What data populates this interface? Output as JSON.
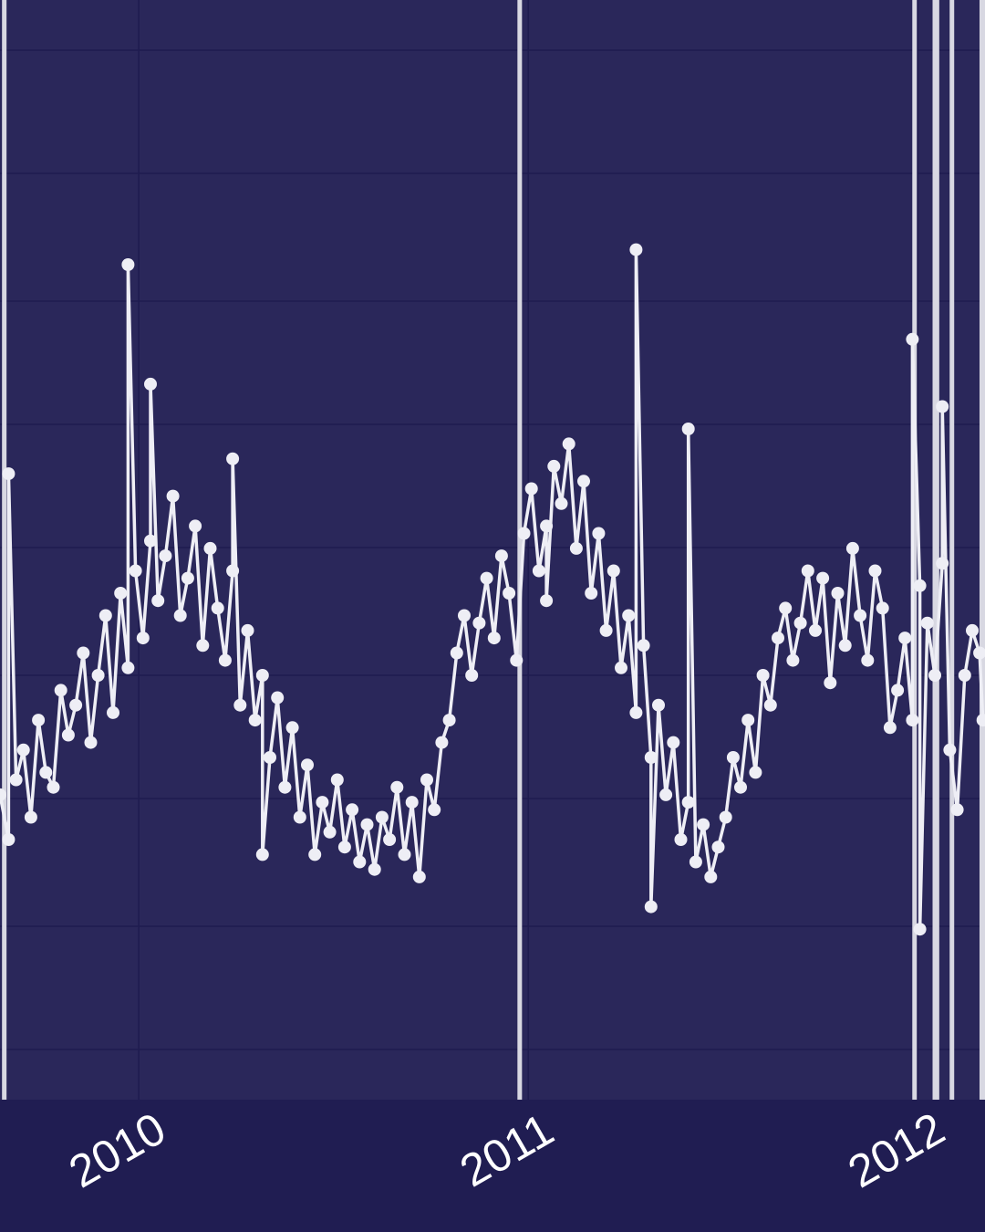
{
  "chart_data": {
    "type": "line",
    "title": "",
    "xlabel": "",
    "ylabel": "",
    "x_tick_labels": [
      "2010",
      "2011",
      "2012"
    ],
    "x_range": [
      "2009-08-24",
      "2012-03-04"
    ],
    "grid": true,
    "legend": "none",
    "markers": true,
    "colors": {
      "background": "#201d52",
      "plot_area": "#2a275a",
      "grid": "#1e1b4f",
      "series": "#eeeef5",
      "reference_lines": "#d8d8e2"
    },
    "reference_lines_x": [
      "2009-08-28",
      "2010-12-24",
      "2011-12-29",
      "2012-01-17",
      "2012-01-19",
      "2012-02-02",
      "2012-03-01",
      "2012-03-03"
    ],
    "series": [
      {
        "x": [
          "2009-08-24",
          "2009-09-01",
          "2009-09-08",
          "2009-09-15",
          "2009-09-22",
          "2009-09-29",
          "2009-10-06",
          "2009-10-13",
          "2009-10-20",
          "2009-10-27",
          "2009-11-03",
          "2009-11-10",
          "2009-11-17",
          "2009-11-24",
          "2009-12-01",
          "2009-12-08",
          "2009-12-15",
          "2009-12-22",
          "2009-12-29",
          "2010-01-05",
          "2010-01-12",
          "2010-01-19",
          "2010-01-26",
          "2010-02-02",
          "2010-02-09",
          "2010-02-16",
          "2010-02-23",
          "2010-03-02",
          "2010-03-09",
          "2010-03-16",
          "2010-03-23",
          "2010-03-30",
          "2010-04-06",
          "2010-04-13",
          "2010-04-20",
          "2010-04-27",
          "2010-05-04",
          "2010-05-11",
          "2010-05-18",
          "2010-05-25",
          "2010-06-01",
          "2010-06-08",
          "2010-06-15",
          "2010-06-22",
          "2010-06-29",
          "2010-07-06",
          "2010-07-13",
          "2010-07-20",
          "2010-07-27",
          "2010-08-03",
          "2010-08-10",
          "2010-08-17",
          "2010-08-24",
          "2010-08-31",
          "2010-09-07",
          "2010-09-14",
          "2010-09-21",
          "2010-09-28",
          "2010-10-05",
          "2010-10-12",
          "2010-10-19",
          "2010-10-26",
          "2010-11-02",
          "2010-11-09",
          "2010-11-16",
          "2010-11-23",
          "2010-11-30",
          "2010-12-07",
          "2010-12-14",
          "2010-12-21",
          "2010-12-28",
          "2011-01-04",
          "2011-01-11",
          "2011-01-18",
          "2011-01-25",
          "2011-02-01",
          "2011-02-08",
          "2011-02-15",
          "2011-02-22",
          "2011-03-01",
          "2011-03-08",
          "2011-03-15",
          "2011-03-22",
          "2011-03-29",
          "2011-04-05",
          "2011-04-12",
          "2011-04-19",
          "2011-04-26",
          "2011-05-03",
          "2011-05-10",
          "2011-05-17",
          "2011-05-24",
          "2011-05-31",
          "2011-06-07",
          "2011-06-14",
          "2011-06-21",
          "2011-06-28",
          "2011-07-05",
          "2011-07-12",
          "2011-07-19",
          "2011-07-26",
          "2011-08-02",
          "2011-08-09",
          "2011-08-16",
          "2011-08-23",
          "2011-08-30",
          "2011-09-06",
          "2011-09-13",
          "2011-09-20",
          "2011-09-27",
          "2011-10-04",
          "2011-10-11",
          "2011-10-18",
          "2011-10-25",
          "2011-11-01",
          "2011-11-08",
          "2011-11-15",
          "2011-11-22",
          "2011-11-29",
          "2011-12-06",
          "2011-12-13",
          "2011-12-20",
          "2011-12-27",
          "2012-01-03",
          "2012-01-10",
          "2012-01-17",
          "2012-01-24",
          "2012-01-31",
          "2012-02-07",
          "2012-02-14",
          "2012-02-21",
          "2012-02-28",
          "2012-03-02"
        ],
        "y": [
          28,
          22,
          30,
          34,
          25,
          38,
          31,
          29,
          42,
          36,
          40,
          47,
          35,
          44,
          52,
          39,
          55,
          45,
          58,
          49,
          62,
          54,
          60,
          68,
          52,
          57,
          64,
          48,
          61,
          53,
          46,
          58,
          40,
          50,
          38,
          44,
          33,
          41,
          29,
          37,
          25,
          32,
          20,
          27,
          23,
          30,
          21,
          26,
          19,
          24,
          18,
          25,
          22,
          29,
          20,
          27,
          17,
          30,
          26,
          35,
          38,
          47,
          52,
          44,
          51,
          57,
          49,
          60,
          55,
          46,
          63,
          69,
          58,
          64,
          72,
          67,
          75,
          61,
          70,
          55,
          63,
          50,
          58,
          45,
          52,
          39,
          48,
          33,
          40,
          28,
          35,
          22,
          27,
          19,
          24,
          17,
          21,
          25,
          33,
          29,
          38,
          31,
          44,
          40,
          49,
          53,
          46,
          51,
          58,
          50,
          57,
          43,
          55,
          48,
          61,
          52,
          46,
          58,
          53,
          37,
          42,
          49,
          38,
          56,
          51,
          44,
          59,
          34,
          26,
          44,
          50,
          47,
          38
        ],
        "spikes": [
          {
            "x": "2009-09-01",
            "y": 71
          },
          {
            "x": "2009-12-22",
            "y": 99
          },
          {
            "x": "2010-01-12",
            "y": 83
          },
          {
            "x": "2010-03-30",
            "y": 73
          },
          {
            "x": "2010-04-27",
            "y": 20
          },
          {
            "x": "2011-01-18",
            "y": 54
          },
          {
            "x": "2011-04-12",
            "y": 101
          },
          {
            "x": "2011-04-26",
            "y": 13
          },
          {
            "x": "2011-05-31",
            "y": 77
          },
          {
            "x": "2011-12-27",
            "y": 89
          },
          {
            "x": "2012-01-03",
            "y": 10
          },
          {
            "x": "2012-01-24",
            "y": 80
          }
        ]
      }
    ]
  }
}
